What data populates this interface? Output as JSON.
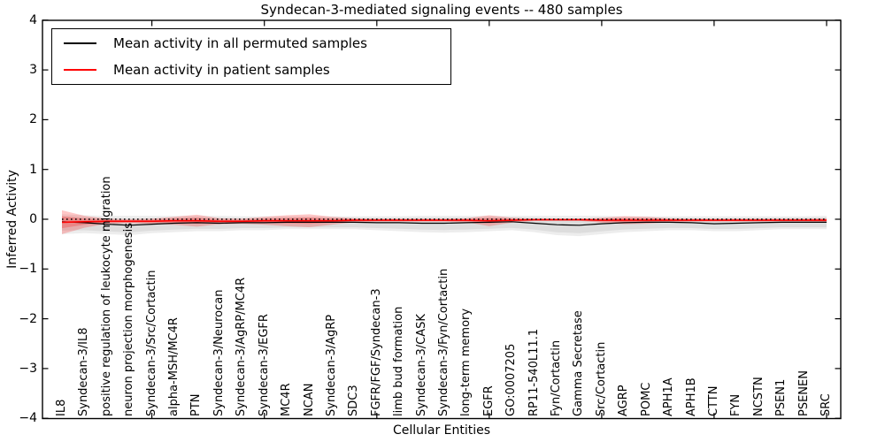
{
  "figure": {
    "title": "Syndecan-3-mediated signaling events -- 480 samples",
    "xlabel": "Cellular Entities",
    "ylabel": "Inferred Activity"
  },
  "legend": {
    "position": "upper left",
    "items": [
      {
        "label": "Mean activity in all permuted samples",
        "color": "#000000"
      },
      {
        "label": "Mean activity in patient samples",
        "color": "#ff0000"
      }
    ]
  },
  "chart_data": {
    "type": "line",
    "title": "Syndecan-3-mediated signaling events -- 480 samples",
    "xlabel": "Cellular Entities",
    "ylabel": "Inferred Activity",
    "ylim": [
      -4,
      4
    ],
    "yticks": [
      4,
      3,
      2,
      1,
      0,
      -1,
      -2,
      -3,
      -4
    ],
    "xtick_every": 5,
    "grid": false,
    "zero_line_style": "dotted",
    "legend_position": "upper left",
    "categories": [
      "IL8",
      "Syndecan-3/IL8",
      "positive regulation of leukocyte migration",
      "neuron projection morphogenesis",
      "Syndecan-3/Src/Cortactin",
      "alpha-MSH/MC4R",
      "PTN",
      "Syndecan-3/Neurocan",
      "Syndecan-3/AgRP/MC4R",
      "Syndecan-3/EGFR",
      "MC4R",
      "NCAN",
      "Syndecan-3/AgRP",
      "SDC3",
      "FGFR/FGF/Syndecan-3",
      "limb bud formation",
      "Syndecan-3/CASK",
      "Syndecan-3/Fyn/Cortactin",
      "long-term memory",
      "EGFR",
      "GO:0007205",
      "RP11-540L11.1",
      "Fyn/Cortactin",
      "Gamma Secretase",
      "Src/Cortactin",
      "AGRP",
      "POMC",
      "APH1A",
      "APH1B",
      "CTTN",
      "FYN",
      "NCSTN",
      "PSEN1",
      "PSENEN",
      "SRC"
    ],
    "series": [
      {
        "name": "Mean activity in all permuted samples",
        "color": "#000000",
        "band_color": "rgba(130,130,130,0.14)",
        "mean": [
          -0.05,
          -0.07,
          -0.1,
          -0.12,
          -0.1,
          -0.08,
          -0.07,
          -0.08,
          -0.07,
          -0.07,
          -0.06,
          -0.06,
          -0.06,
          -0.06,
          -0.07,
          -0.07,
          -0.08,
          -0.08,
          -0.07,
          -0.06,
          -0.05,
          -0.08,
          -0.11,
          -0.12,
          -0.09,
          -0.07,
          -0.06,
          -0.06,
          -0.07,
          -0.09,
          -0.08,
          -0.07,
          -0.06,
          -0.06,
          -0.06
        ],
        "lo": [
          -0.3,
          -0.28,
          -0.3,
          -0.32,
          -0.28,
          -0.26,
          -0.24,
          -0.24,
          -0.22,
          -0.22,
          -0.2,
          -0.2,
          -0.2,
          -0.2,
          -0.22,
          -0.24,
          -0.26,
          -0.27,
          -0.26,
          -0.24,
          -0.22,
          -0.26,
          -0.32,
          -0.34,
          -0.3,
          -0.26,
          -0.24,
          -0.22,
          -0.22,
          -0.24,
          -0.24,
          -0.22,
          -0.2,
          -0.2,
          -0.2
        ],
        "hi": [
          0.1,
          0.08,
          0.07,
          0.07,
          0.07,
          0.07,
          0.07,
          0.07,
          0.06,
          0.06,
          0.06,
          0.06,
          0.06,
          0.06,
          0.06,
          0.06,
          0.07,
          0.07,
          0.07,
          0.07,
          0.07,
          0.07,
          0.07,
          0.07,
          0.07,
          0.06,
          0.06,
          0.06,
          0.06,
          0.06,
          0.06,
          0.06,
          0.06,
          0.06,
          0.07
        ]
      },
      {
        "name": "Mean activity in patient samples",
        "color": "#ff0000",
        "band_color": "rgba(255,0,0,0.22)",
        "mean": [
          -0.06,
          -0.05,
          -0.04,
          -0.04,
          -0.04,
          -0.03,
          -0.03,
          -0.04,
          -0.04,
          -0.03,
          -0.03,
          -0.03,
          -0.03,
          -0.02,
          -0.02,
          -0.02,
          -0.02,
          -0.02,
          -0.02,
          -0.03,
          -0.02,
          -0.01,
          -0.01,
          -0.01,
          -0.02,
          -0.02,
          -0.02,
          -0.02,
          -0.02,
          -0.02,
          -0.02,
          -0.02,
          -0.02,
          -0.02,
          -0.02
        ],
        "lo": [
          -0.3,
          -0.17,
          -0.09,
          -0.08,
          -0.09,
          -0.11,
          -0.15,
          -0.1,
          -0.09,
          -0.11,
          -0.14,
          -0.16,
          -0.11,
          -0.06,
          -0.05,
          -0.05,
          -0.05,
          -0.05,
          -0.06,
          -0.14,
          -0.07,
          -0.03,
          -0.03,
          -0.03,
          -0.07,
          -0.1,
          -0.09,
          -0.06,
          -0.05,
          -0.05,
          -0.05,
          -0.05,
          -0.05,
          -0.05,
          -0.06
        ],
        "hi": [
          0.18,
          0.07,
          0.01,
          0.0,
          0.01,
          0.05,
          0.09,
          0.02,
          0.01,
          0.05,
          0.08,
          0.1,
          0.05,
          0.02,
          0.01,
          0.01,
          0.01,
          0.01,
          0.02,
          0.08,
          0.03,
          0.01,
          0.01,
          0.01,
          0.03,
          0.06,
          0.05,
          0.02,
          0.01,
          0.01,
          0.01,
          0.01,
          0.01,
          0.01,
          0.02
        ]
      }
    ]
  }
}
